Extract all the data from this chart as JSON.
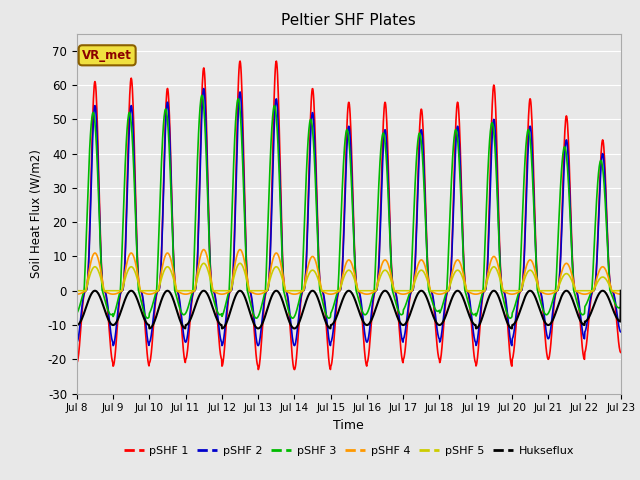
{
  "title": "Peltier SHF Plates",
  "xlabel": "Time",
  "ylabel": "Soil Heat Flux (W/m2)",
  "ylim": [
    -30,
    75
  ],
  "yticks": [
    -30,
    -20,
    -10,
    0,
    10,
    20,
    30,
    40,
    50,
    60,
    70
  ],
  "xtick_labels": [
    "Jul 8",
    "Jul 9",
    "Jul 10",
    "Jul 11",
    "Jul 12",
    "Jul 13",
    "Jul 14",
    "Jul 15",
    "Jul 16",
    "Jul 17",
    "Jul 18",
    "Jul 19",
    "Jul 20",
    "Jul 21",
    "Jul 22",
    "Jul 23"
  ],
  "n_days": 15,
  "series_colors": {
    "pSHF 1": "#ff0000",
    "pSHF 2": "#0000cc",
    "pSHF 3": "#00bb00",
    "pSHF 4": "#ff9900",
    "pSHF 5": "#cccc00",
    "Hukseflux": "#000000"
  },
  "annotation_text": "VR_met",
  "bg_color": "#e8e8e8",
  "grid_color": "#ffffff",
  "pSHF1_day_amps": [
    61,
    62,
    59,
    65,
    67,
    67,
    59,
    55,
    55,
    53,
    55,
    60,
    56,
    51,
    44
  ],
  "pSHF1_night_amps": [
    -21,
    -22,
    -21,
    -20,
    -22,
    -23,
    -23,
    -22,
    -21,
    -20,
    -21,
    -22,
    -20,
    -20,
    -18
  ],
  "pSHF2_day_amps": [
    54,
    54,
    55,
    59,
    58,
    56,
    52,
    48,
    47,
    47,
    48,
    50,
    48,
    44,
    40
  ],
  "pSHF2_night_amps": [
    -15,
    -16,
    -15,
    -15,
    -16,
    -16,
    -16,
    -15,
    -15,
    -14,
    -15,
    -16,
    -14,
    -14,
    -12
  ],
  "pSHF3_day_amps": [
    52,
    52,
    53,
    57,
    56,
    54,
    50,
    47,
    46,
    46,
    47,
    49,
    47,
    42,
    38
  ],
  "pSHF3_night_amps": [
    -7,
    -8,
    -7,
    -7,
    -8,
    -8,
    -8,
    -7,
    -7,
    -6,
    -7,
    -8,
    -7,
    -7,
    -5
  ],
  "pSHF4_day_amps": [
    11,
    11,
    11,
    12,
    12,
    11,
    10,
    9,
    9,
    9,
    9,
    10,
    9,
    8,
    7
  ],
  "pSHF4_night_amps": [
    -1,
    -1,
    -1,
    -1,
    -1,
    -1,
    -1,
    -1,
    -1,
    -1,
    -1,
    -1,
    -1,
    -1,
    -1
  ],
  "pSHF5_day_amps": [
    7,
    7,
    7,
    8,
    8,
    7,
    6,
    6,
    6,
    6,
    6,
    7,
    6,
    5,
    4
  ],
  "pSHF5_night_amps": [
    0,
    0,
    0,
    0,
    0,
    0,
    0,
    0,
    0,
    0,
    0,
    0,
    0,
    0,
    0
  ],
  "huk_night_amps": [
    -10,
    -10,
    -11,
    -10,
    -11,
    -11,
    -11,
    -10,
    -10,
    -10,
    -10,
    -11,
    -10,
    -10,
    -9
  ],
  "phase_red": -0.25,
  "phase_blue": -0.25,
  "phase_green": -0.2,
  "phase_orange": -0.25,
  "phase_yellow": -0.25
}
